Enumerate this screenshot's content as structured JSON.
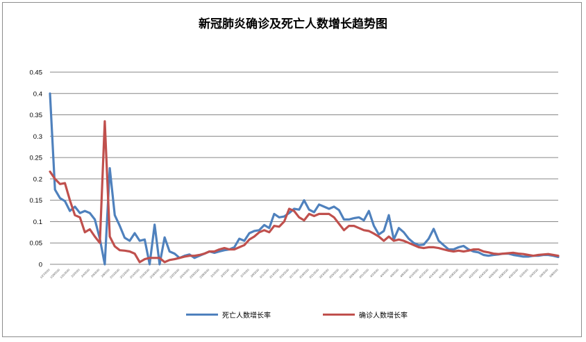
{
  "chart_data": {
    "type": "line",
    "title": "新冠肺炎确诊及死亡人数增长趋势图",
    "xlabel": "",
    "ylabel": "",
    "ylim": [
      0,
      0.45
    ],
    "yticks": [
      "0",
      "0.05",
      "0.1",
      "0.15",
      "0.2",
      "0.25",
      "0.3",
      "0.35",
      "0.4",
      "0.45"
    ],
    "grid": true,
    "legend_position": "bottom",
    "x": [
      "1/27/2020",
      "1/28/2020",
      "1/29/2020",
      "1/30/2020",
      "1/31/2020",
      "2/1/2020",
      "2/2/2020",
      "2/3/2020",
      "2/4/2020",
      "2/5/2020",
      "2/6/2020",
      "2/7/2020",
      "2/8/2020",
      "2/9/2020",
      "2/10/2020",
      "2/11/2020",
      "2/12/2020",
      "2/13/2020",
      "2/14/2020",
      "2/15/2020",
      "2/16/2020",
      "2/17/2020",
      "2/18/2020",
      "2/19/2020",
      "2/20/2020",
      "2/21/2020",
      "2/22/2020",
      "2/23/2020",
      "2/24/2020",
      "2/25/2020",
      "2/26/2020",
      "2/27/2020",
      "2/28/2020",
      "2/29/2020",
      "3/1/2020",
      "3/2/2020",
      "3/3/2020",
      "3/4/2020",
      "3/5/2020",
      "3/6/2020",
      "3/7/2020",
      "3/8/2020",
      "3/9/2020",
      "3/10/2020",
      "3/11/2020",
      "3/12/2020",
      "3/13/2020",
      "3/14/2020",
      "3/15/2020",
      "3/16/2020",
      "3/17/2020",
      "3/18/2020",
      "3/19/2020",
      "3/20/2020",
      "3/21/2020",
      "3/22/2020",
      "3/23/2020",
      "3/24/2020",
      "3/25/2020",
      "3/26/2020",
      "3/27/2020",
      "3/28/2020",
      "3/29/2020",
      "3/30/2020",
      "3/31/2020",
      "4/1/2020",
      "4/2/2020",
      "4/3/2020",
      "4/4/2020",
      "4/5/2020",
      "4/6/2020",
      "4/7/2020",
      "4/8/2020",
      "4/9/2020",
      "4/10/2020",
      "4/11/2020",
      "4/12/2020",
      "4/13/2020",
      "4/14/2020",
      "4/15/2020",
      "4/16/2020",
      "4/17/2020",
      "4/18/2020",
      "4/19/2020",
      "4/20/2020",
      "4/21/2020",
      "4/22/2020",
      "4/23/2020",
      "4/24/2020",
      "4/25/2020",
      "4/26/2020",
      "4/27/2020",
      "4/28/2020",
      "4/29/2020",
      "4/30/2020",
      "5/1/2020",
      "5/2/2020",
      "5/3/2020",
      "5/4/2020",
      "5/5/2020",
      "5/6/2020",
      "5/7/2020",
      "5/8/2020"
    ],
    "x_tick_labels": [
      "1/27/2020",
      "1/29/2020",
      "1/31/2020",
      "2/2/2020",
      "2/4/2020",
      "2/6/2020",
      "2/8/2020",
      "2/10/2020",
      "2/12/2020",
      "2/14/2020",
      "2/16/2020",
      "2/18/2020",
      "2/20/2020",
      "2/22/2020",
      "2/24/2020",
      "2/26/2020",
      "2/28/2020",
      "3/1/2020",
      "3/3/2020",
      "3/5/2020",
      "3/7/2020",
      "3/9/2020",
      "3/11/2020",
      "3/13/2020",
      "3/15/2020",
      "3/17/2020",
      "3/19/2020",
      "3/21/2020",
      "3/23/2020",
      "3/25/2020",
      "3/27/2020",
      "3/29/2020",
      "3/31/2020",
      "4/2/2020",
      "4/4/2020",
      "4/6/2020",
      "4/8/2020",
      "4/10/2020",
      "4/12/2020",
      "4/14/2020",
      "4/16/2020",
      "4/18/2020",
      "4/20/2020",
      "4/22/2020",
      "4/24/2020",
      "4/26/2020",
      "4/28/2020",
      "4/30/2020",
      "5/2/2020",
      "5/4/2020",
      "5/6/2020",
      "5/8/2020"
    ],
    "series": [
      {
        "name": "死亡人数增长率",
        "color": "#4F81BD",
        "values": [
          0.4,
          0.175,
          0.155,
          0.148,
          0.125,
          0.135,
          0.12,
          0.125,
          0.12,
          0.105,
          0.06,
          0.0,
          0.225,
          0.115,
          0.09,
          0.062,
          0.055,
          0.073,
          0.055,
          0.058,
          0.0,
          0.093,
          0.0,
          0.063,
          0.03,
          0.025,
          0.015,
          0.02,
          0.023,
          0.015,
          0.02,
          0.025,
          0.03,
          0.027,
          0.03,
          0.033,
          0.035,
          0.04,
          0.06,
          0.055,
          0.073,
          0.078,
          0.08,
          0.092,
          0.085,
          0.118,
          0.11,
          0.112,
          0.12,
          0.13,
          0.128,
          0.15,
          0.128,
          0.122,
          0.14,
          0.135,
          0.13,
          0.135,
          0.127,
          0.105,
          0.105,
          0.108,
          0.11,
          0.103,
          0.125,
          0.09,
          0.07,
          0.078,
          0.115,
          0.058,
          0.085,
          0.075,
          0.06,
          0.05,
          0.045,
          0.046,
          0.06,
          0.083,
          0.055,
          0.045,
          0.035,
          0.035,
          0.04,
          0.043,
          0.035,
          0.03,
          0.028,
          0.022,
          0.02,
          0.022,
          0.023,
          0.025,
          0.025,
          0.022,
          0.02,
          0.018,
          0.018,
          0.02,
          0.02,
          0.022,
          0.022,
          0.02,
          0.017
        ],
        "note": ""
      },
      {
        "name": "确诊人数增长率",
        "color": "#C0504D",
        "values": [
          0.217,
          0.2,
          0.188,
          0.19,
          0.15,
          0.115,
          0.11,
          0.075,
          0.082,
          0.065,
          0.05,
          0.335,
          0.065,
          0.042,
          0.033,
          0.032,
          0.03,
          0.025,
          0.005,
          0.012,
          0.015,
          0.015,
          0.015,
          0.005,
          0.01,
          0.012,
          0.015,
          0.018,
          0.02,
          0.02,
          0.022,
          0.025,
          0.03,
          0.03,
          0.035,
          0.038,
          0.035,
          0.035,
          0.04,
          0.045,
          0.058,
          0.065,
          0.075,
          0.08,
          0.075,
          0.09,
          0.088,
          0.1,
          0.13,
          0.125,
          0.11,
          0.103,
          0.118,
          0.113,
          0.118,
          0.118,
          0.118,
          0.11,
          0.095,
          0.08,
          0.09,
          0.09,
          0.085,
          0.08,
          0.078,
          0.072,
          0.065,
          0.055,
          0.065,
          0.055,
          0.058,
          0.055,
          0.05,
          0.045,
          0.04,
          0.038,
          0.04,
          0.04,
          0.038,
          0.035,
          0.032,
          0.03,
          0.032,
          0.03,
          0.032,
          0.035,
          0.035,
          0.03,
          0.028,
          0.025,
          0.024,
          0.025,
          0.026,
          0.027,
          0.025,
          0.024,
          0.022,
          0.02,
          0.022,
          0.023,
          0.024,
          0.022,
          0.02
        ]
      }
    ]
  }
}
